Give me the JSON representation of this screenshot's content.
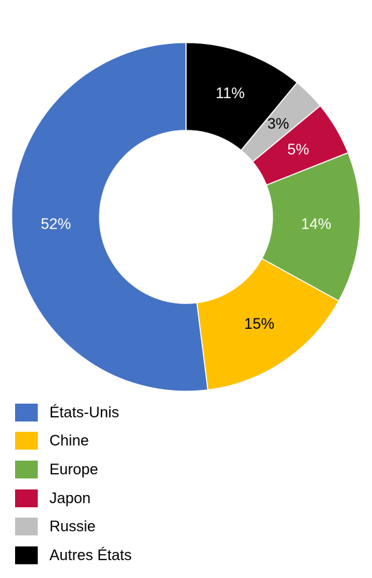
{
  "chart_data": {
    "type": "pie",
    "variant": "donut",
    "title": "",
    "legend_position": "bottom",
    "series": [
      {
        "name": "États-Unis",
        "value": 52,
        "label": "52%",
        "color": "#4472C4",
        "label_color": "#FFFFFF"
      },
      {
        "name": "Chine",
        "value": 15,
        "label": "15%",
        "color": "#FFC000",
        "label_color": "#000000"
      },
      {
        "name": "Europe",
        "value": 14,
        "label": "14%",
        "color": "#70AD47",
        "label_color": "#FFFFFF"
      },
      {
        "name": "Japon",
        "value": 5,
        "label": "5%",
        "color": "#C00C3F",
        "label_color": "#FFFFFF"
      },
      {
        "name": "Russie",
        "value": 3,
        "label": "3%",
        "color": "#BFBFBF",
        "label_color": "#000000"
      },
      {
        "name": "Autres États",
        "value": 11,
        "label": "11%",
        "color": "#000000",
        "label_color": "#FFFFFF"
      }
    ]
  }
}
